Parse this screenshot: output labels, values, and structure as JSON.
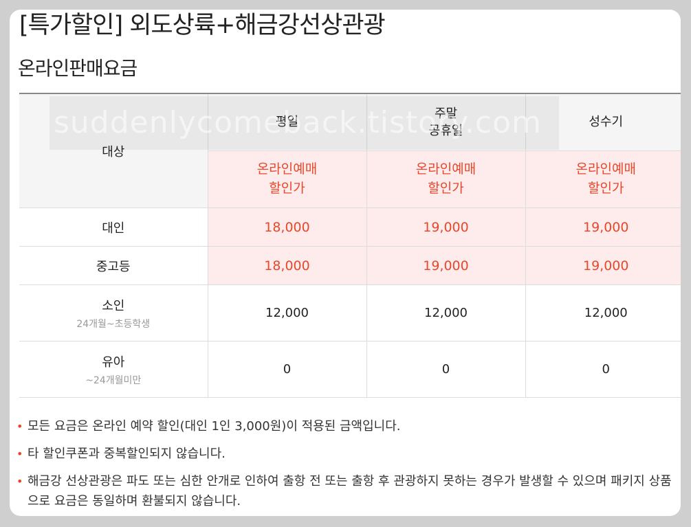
{
  "page_title": "[특가할인] 외도상륙+해금강선상관광",
  "section_title": "온라인판매요금",
  "watermark": "suddenlycomeback.tistory.com",
  "table": {
    "target_header": "대상",
    "seasons": [
      {
        "label_line1": "평일",
        "label_line2": ""
      },
      {
        "label_line1": "주말",
        "label_line2": "공휴일"
      },
      {
        "label_line1": "성수기",
        "label_line2": ""
      }
    ],
    "online_label_line1": "온라인예매",
    "online_label_line2": "할인가",
    "rows": [
      {
        "label": "대인",
        "sub": "",
        "prices": [
          "18,000",
          "19,000",
          "19,000"
        ],
        "highlight": true
      },
      {
        "label": "중고등",
        "sub": "",
        "prices": [
          "18,000",
          "19,000",
          "19,000"
        ],
        "highlight": true
      },
      {
        "label": "소인",
        "sub": "24개월~초등학생",
        "prices": [
          "12,000",
          "12,000",
          "12,000"
        ],
        "highlight": false
      },
      {
        "label": "유아",
        "sub": "~24개월미만",
        "prices": [
          "0",
          "0",
          "0"
        ],
        "highlight": false
      }
    ]
  },
  "notes": [
    "모든 요금은 온라인 예약 할인(대인 1인 3,000원)이 적용된 금액입니다.",
    "타 할인쿠폰과 중복할인되지 않습니다.",
    "해금강 선상관광은 파도 또는 심한 안개로 인하여 출항 전 또는 출항 후 관광하지 못하는 경우가 발생할 수 있으며 패키지 상품으로 요금은 동일하며 환불되지 않습니다."
  ],
  "colors": {
    "accent": "#e8472b",
    "highlight_bg": "#fdeceb",
    "header_bg": "#f5f5f5"
  }
}
